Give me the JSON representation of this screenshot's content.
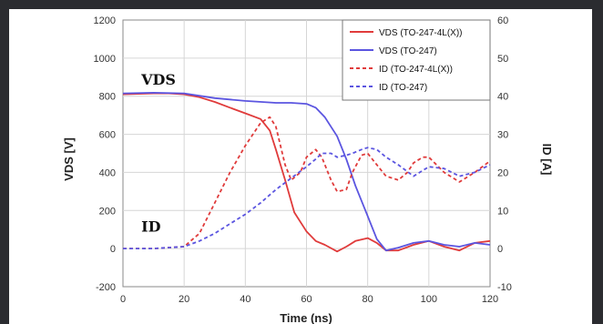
{
  "chart_data": {
    "type": "line",
    "xlabel": "Time (ns)",
    "ylabel_left": "VDS [V]",
    "ylabel_right": "ID [A]",
    "xlim": [
      0,
      120
    ],
    "ylim_left": [
      -200,
      1200
    ],
    "ylim_right": [
      -10,
      60
    ],
    "x_ticks": [
      0,
      20,
      40,
      60,
      80,
      100,
      120
    ],
    "y_ticks_left": [
      -200,
      0,
      200,
      400,
      600,
      800,
      1000,
      1200
    ],
    "y_ticks_right": [
      -10,
      0,
      10,
      20,
      30,
      40,
      50,
      60
    ],
    "grid": true,
    "legend_position": "top-right",
    "annotations": [
      {
        "text": "VDS",
        "x": 6,
        "y": 860
      },
      {
        "text": "ID",
        "x": 6,
        "y": 90
      }
    ],
    "series": [
      {
        "name": "VDS (TO-247-4L(X))",
        "axis": "left",
        "color": "#e03b3b",
        "dash": "solid",
        "x": [
          0,
          10,
          15,
          20,
          25,
          30,
          35,
          40,
          45,
          48,
          50,
          53,
          56,
          60,
          63,
          66,
          70,
          73,
          76,
          80,
          83,
          86,
          90,
          95,
          100,
          105,
          110,
          115,
          120
        ],
        "y": [
          810,
          815,
          815,
          810,
          795,
          770,
          740,
          710,
          680,
          620,
          520,
          360,
          190,
          90,
          40,
          20,
          -15,
          10,
          40,
          55,
          30,
          -10,
          -10,
          20,
          40,
          10,
          -10,
          30,
          40
        ]
      },
      {
        "name": "VDS (TO-247)",
        "axis": "left",
        "color": "#5b55e0",
        "dash": "solid",
        "x": [
          0,
          10,
          20,
          30,
          40,
          50,
          55,
          60,
          63,
          66,
          70,
          73,
          76,
          80,
          83,
          86,
          90,
          95,
          100,
          105,
          110,
          115,
          120
        ],
        "y": [
          815,
          818,
          815,
          790,
          775,
          765,
          765,
          760,
          740,
          690,
          590,
          470,
          330,
          170,
          50,
          -10,
          5,
          30,
          40,
          20,
          10,
          30,
          20
        ]
      },
      {
        "name": "ID (TO-247-4L(X))",
        "axis": "right",
        "color": "#e03b3b",
        "dash": "dashed",
        "x": [
          0,
          10,
          20,
          25,
          30,
          35,
          40,
          45,
          48,
          50,
          53,
          55,
          58,
          60,
          63,
          65,
          68,
          70,
          73,
          75,
          78,
          80,
          83,
          86,
          90,
          93,
          95,
          98,
          100,
          105,
          110,
          115,
          120
        ],
        "y": [
          0,
          0,
          0.5,
          4,
          12,
          20,
          27,
          33,
          34.5,
          32,
          22,
          18,
          20,
          24,
          26,
          24,
          18,
          15,
          15.5,
          20,
          24.5,
          25,
          22,
          19,
          18,
          20,
          22.5,
          24,
          24,
          20,
          17.5,
          20,
          23
        ]
      },
      {
        "name": "ID (TO-247)",
        "axis": "right",
        "color": "#5b55e0",
        "dash": "dashed",
        "x": [
          0,
          10,
          20,
          25,
          30,
          35,
          40,
          45,
          50,
          55,
          60,
          63,
          65,
          68,
          70,
          73,
          75,
          78,
          80,
          83,
          86,
          90,
          95,
          100,
          105,
          110,
          115,
          120
        ],
        "y": [
          0,
          0,
          0.5,
          2,
          4,
          6.5,
          9,
          12,
          15.5,
          18.5,
          21.5,
          23.5,
          25,
          25,
          24,
          24.5,
          25,
          26,
          26.5,
          26,
          24,
          22,
          19,
          21.5,
          21,
          19,
          20,
          22
        ]
      }
    ]
  }
}
